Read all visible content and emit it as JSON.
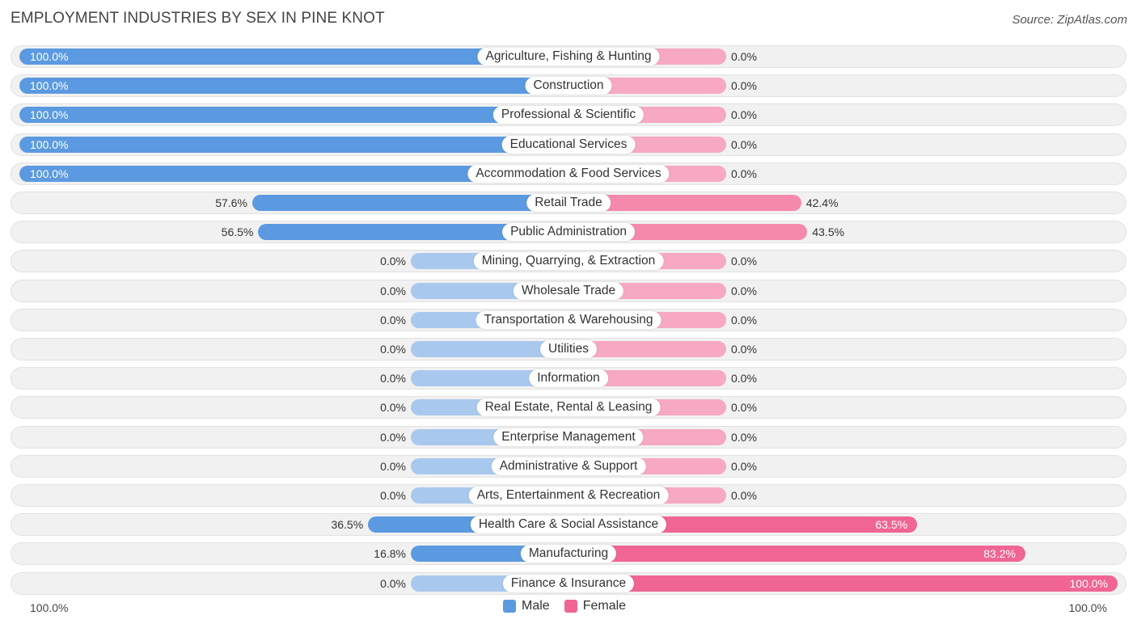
{
  "header": {
    "title": "EMPLOYMENT INDUSTRIES BY SEX IN PINE KNOT",
    "source": "Source: ZipAtlas.com"
  },
  "colors": {
    "male_strong": "#5b9ae0",
    "male_light": "#a9c8ee",
    "female_strong": "#f06593",
    "female_light": "#f7a8c2"
  },
  "legend": {
    "male": "Male",
    "female": "Female"
  },
  "axis": {
    "left": "100.0%",
    "right": "100.0%"
  },
  "chart_data": {
    "type": "bar",
    "orientation": "horizontal-diverging",
    "xlim": [
      0,
      100
    ],
    "categories": [
      "Agriculture, Fishing & Hunting",
      "Construction",
      "Professional & Scientific",
      "Educational Services",
      "Accommodation & Food Services",
      "Retail Trade",
      "Public Administration",
      "Mining, Quarrying, & Extraction",
      "Wholesale Trade",
      "Transportation & Warehousing",
      "Utilities",
      "Information",
      "Real Estate, Rental & Leasing",
      "Enterprise Management",
      "Administrative & Support",
      "Arts, Entertainment & Recreation",
      "Health Care & Social Assistance",
      "Manufacturing",
      "Finance & Insurance"
    ],
    "series": [
      {
        "name": "Male",
        "values": [
          100.0,
          100.0,
          100.0,
          100.0,
          100.0,
          57.6,
          56.5,
          0.0,
          0.0,
          0.0,
          0.0,
          0.0,
          0.0,
          0.0,
          0.0,
          0.0,
          36.5,
          16.8,
          0.0
        ],
        "labels": [
          "100.0%",
          "100.0%",
          "100.0%",
          "100.0%",
          "100.0%",
          "57.6%",
          "56.5%",
          "0.0%",
          "0.0%",
          "0.0%",
          "0.0%",
          "0.0%",
          "0.0%",
          "0.0%",
          "0.0%",
          "0.0%",
          "36.5%",
          "16.8%",
          "0.0%"
        ]
      },
      {
        "name": "Female",
        "values": [
          0.0,
          0.0,
          0.0,
          0.0,
          0.0,
          42.4,
          43.5,
          0.0,
          0.0,
          0.0,
          0.0,
          0.0,
          0.0,
          0.0,
          0.0,
          0.0,
          63.5,
          83.2,
          100.0
        ],
        "labels": [
          "0.0%",
          "0.0%",
          "0.0%",
          "0.0%",
          "0.0%",
          "42.4%",
          "43.5%",
          "0.0%",
          "0.0%",
          "0.0%",
          "0.0%",
          "0.0%",
          "0.0%",
          "0.0%",
          "0.0%",
          "0.0%",
          "63.5%",
          "83.2%",
          "100.0%"
        ]
      }
    ],
    "legend_position": "bottom-center"
  }
}
